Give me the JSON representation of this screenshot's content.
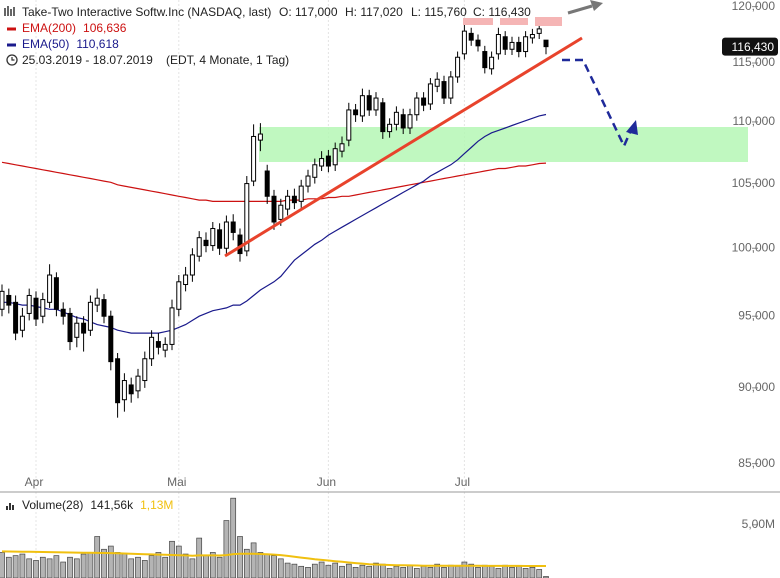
{
  "chart_data": {
    "type": "candlestick",
    "title": "Take-Two Interactive Softw.Inc (NASDAQ, last)",
    "quote": [
      "O: 117,000",
      "H: 117,020",
      "L: 115,760",
      "C: 116,430"
    ],
    "range_label": "25.03.2019 - 18.07.2019",
    "range_note": "(EDT, 4 Monate, 1 Tag)",
    "last_label": "116,430",
    "log": true,
    "grid": true,
    "up_color": "#ffffff",
    "down_color": "#000000",
    "categories": [
      null,
      null,
      null,
      null,
      null,
      "Apr",
      null,
      null,
      null,
      null,
      null,
      null,
      null,
      null,
      null,
      null,
      null,
      null,
      null,
      null,
      null,
      null,
      null,
      null,
      null,
      null,
      "Mai",
      null,
      null,
      null,
      null,
      null,
      null,
      null,
      null,
      null,
      null,
      null,
      null,
      null,
      null,
      null,
      null,
      null,
      null,
      null,
      null,
      null,
      "Jun",
      null,
      null,
      null,
      null,
      null,
      null,
      null,
      null,
      null,
      null,
      null,
      null,
      null,
      null,
      null,
      null,
      null,
      null,
      null,
      "Jul",
      null,
      null,
      null,
      null,
      null,
      null,
      null,
      null,
      null,
      null,
      null,
      null
    ],
    "ohlc": [
      [
        95500,
        97300,
        95000,
        96800
      ],
      [
        96500,
        97000,
        95200,
        95800
      ],
      [
        96000,
        96500,
        93300,
        93800
      ],
      [
        94000,
        95600,
        93500,
        95000
      ],
      [
        95200,
        97000,
        94700,
        96500
      ],
      [
        96300,
        96800,
        94300,
        94800
      ],
      [
        95000,
        96700,
        94500,
        96200
      ],
      [
        96000,
        98800,
        95600,
        98000
      ],
      [
        97800,
        98200,
        95000,
        95500
      ],
      [
        95500,
        96000,
        94400,
        95000
      ],
      [
        95200,
        95600,
        92600,
        93200
      ],
      [
        93500,
        95000,
        92800,
        94500
      ],
      [
        94500,
        95000,
        92500,
        93800
      ],
      [
        94000,
        96500,
        93600,
        96000
      ],
      [
        95800,
        97000,
        95300,
        96300
      ],
      [
        96200,
        96600,
        94500,
        95000
      ],
      [
        95000,
        95400,
        91200,
        91800
      ],
      [
        92000,
        92400,
        88000,
        89000
      ],
      [
        89200,
        91000,
        88400,
        90500
      ],
      [
        90200,
        90700,
        89000,
        89600
      ],
      [
        89800,
        91300,
        89300,
        90800
      ],
      [
        90500,
        92500,
        90000,
        92000
      ],
      [
        92000,
        94000,
        91500,
        93500
      ],
      [
        93200,
        93800,
        92300,
        92800
      ],
      [
        92600,
        93500,
        92100,
        93000
      ],
      [
        93000,
        96200,
        92600,
        95600
      ],
      [
        95500,
        98000,
        95000,
        97500
      ],
      [
        97300,
        98600,
        96800,
        98000
      ],
      [
        98000,
        100000,
        97500,
        99500
      ],
      [
        99400,
        101300,
        99000,
        100800
      ],
      [
        100600,
        101200,
        99700,
        100200
      ],
      [
        100200,
        102000,
        99800,
        101500
      ],
      [
        101400,
        101900,
        99500,
        100000
      ],
      [
        100000,
        102500,
        99500,
        102000
      ],
      [
        102000,
        102600,
        100600,
        101200
      ],
      [
        101000,
        101500,
        99000,
        99600
      ],
      [
        99800,
        105600,
        99400,
        105000
      ],
      [
        105200,
        109800,
        104800,
        108800
      ],
      [
        108500,
        109900,
        107600,
        109000
      ],
      [
        106000,
        106500,
        103400,
        104000
      ],
      [
        104000,
        104500,
        101400,
        102000
      ],
      [
        102200,
        103800,
        101700,
        103300
      ],
      [
        103000,
        104500,
        102500,
        104000
      ],
      [
        104000,
        104600,
        103000,
        103500
      ],
      [
        103600,
        105300,
        103100,
        104800
      ],
      [
        104800,
        106100,
        104300,
        105600
      ],
      [
        105500,
        107000,
        105000,
        106500
      ],
      [
        106400,
        107600,
        106000,
        107000
      ],
      [
        107200,
        107700,
        105900,
        106400
      ],
      [
        106500,
        108300,
        106000,
        107800
      ],
      [
        107600,
        108800,
        107100,
        108200
      ],
      [
        108500,
        111600,
        108000,
        111000
      ],
      [
        111000,
        111500,
        110000,
        110600
      ],
      [
        110500,
        112800,
        110000,
        112200
      ],
      [
        112200,
        112700,
        110500,
        111000
      ],
      [
        111000,
        112500,
        110500,
        112000
      ],
      [
        111600,
        112000,
        108600,
        109200
      ],
      [
        109200,
        110300,
        108700,
        109800
      ],
      [
        109800,
        111300,
        109300,
        110800
      ],
      [
        110600,
        111100,
        109000,
        109500
      ],
      [
        109500,
        111100,
        109000,
        110600
      ],
      [
        110600,
        112500,
        110100,
        112000
      ],
      [
        112000,
        112500,
        110900,
        111400
      ],
      [
        111500,
        113700,
        111000,
        113200
      ],
      [
        113000,
        114200,
        112500,
        113600
      ],
      [
        113400,
        113900,
        111500,
        112000
      ],
      [
        112000,
        114300,
        111500,
        113800
      ],
      [
        113800,
        116000,
        113300,
        115500
      ],
      [
        115800,
        118400,
        115300,
        117800
      ],
      [
        117600,
        118100,
        116500,
        117000
      ],
      [
        117000,
        117500,
        116000,
        116500
      ],
      [
        116000,
        116500,
        114100,
        114600
      ],
      [
        114500,
        116000,
        114000,
        115500
      ],
      [
        115800,
        118100,
        115300,
        117500
      ],
      [
        117300,
        117800,
        115700,
        116200
      ],
      [
        116200,
        117300,
        115700,
        116800
      ],
      [
        116800,
        117300,
        115500,
        116000
      ],
      [
        116000,
        117800,
        115500,
        117300
      ],
      [
        117200,
        118000,
        116700,
        117500
      ],
      [
        117600,
        118600,
        117100,
        118000
      ],
      [
        117000,
        117020,
        115760,
        116430
      ]
    ],
    "series": [
      {
        "name": "EMA(200)",
        "color": "#cc1111",
        "value_label": "106,636",
        "values": [
          106700,
          106600,
          106500,
          106400,
          106300,
          106200,
          106100,
          106000,
          105900,
          105800,
          105700,
          105600,
          105500,
          105400,
          105300,
          105200,
          105100,
          104900,
          104800,
          104700,
          104600,
          104500,
          104400,
          104300,
          104200,
          104100,
          104000,
          103900,
          103800,
          103700,
          103700,
          103600,
          103600,
          103600,
          103600,
          103600,
          103600,
          103600,
          103600,
          103600,
          103600,
          103600,
          103700,
          103700,
          103700,
          103800,
          103800,
          103800,
          103900,
          103900,
          104000,
          104000,
          104100,
          104200,
          104300,
          104400,
          104500,
          104600,
          104700,
          104800,
          104900,
          105000,
          105100,
          105200,
          105300,
          105400,
          105500,
          105600,
          105700,
          105800,
          105900,
          106000,
          106100,
          106200,
          106200,
          106300,
          106400,
          106400,
          106500,
          106600,
          106636
        ]
      },
      {
        "name": "EMA(50)",
        "color": "#1a1a8c",
        "value_label": "110,618",
        "values": [
          96000,
          96000,
          95900,
          95800,
          95800,
          95700,
          95600,
          95500,
          95500,
          95300,
          95100,
          94900,
          94800,
          94600,
          94400,
          94300,
          94200,
          94000,
          93900,
          93800,
          93800,
          93800,
          93800,
          93800,
          93900,
          94000,
          94200,
          94400,
          94700,
          95000,
          95200,
          95400,
          95500,
          95600,
          95800,
          95800,
          96100,
          96500,
          96900,
          97200,
          97500,
          97900,
          98500,
          99100,
          99500,
          99900,
          100300,
          100600,
          101000,
          101300,
          101600,
          101900,
          102200,
          102500,
          102800,
          103100,
          103400,
          103700,
          104000,
          104300,
          104600,
          104900,
          105200,
          105600,
          105900,
          106200,
          106500,
          106900,
          107400,
          107900,
          108400,
          108800,
          109100,
          109300,
          109500,
          109700,
          109900,
          110100,
          110300,
          110500,
          110618
        ]
      }
    ],
    "ylim": [
      83200,
      120600
    ],
    "yticks": [
      {
        "value": 85000,
        "label": "85,000"
      },
      {
        "value": 90000,
        "label": "90,000"
      },
      {
        "value": 95000,
        "label": "95,000"
      },
      {
        "value": 100000,
        "label": "100,000"
      },
      {
        "value": 105000,
        "label": "105,000"
      },
      {
        "value": 110000,
        "label": "110,000"
      },
      {
        "value": 115000,
        "label": "115,000"
      },
      {
        "value": 120000,
        "label": "120,000"
      }
    ],
    "volume": {
      "name": "Volume(28)",
      "value_label": "141,56k",
      "ma_label": "1,13M",
      "color": "#b4b4b4",
      "ma_color": "#f0c010",
      "ylim": [
        0,
        7800000
      ],
      "yticks": [
        {
          "value": 5000000,
          "label": "5,00M"
        }
      ],
      "values": [
        2400000,
        1950000,
        2100000,
        2250000,
        1800000,
        1650000,
        1950000,
        1800000,
        2100000,
        1500000,
        1950000,
        1800000,
        2250000,
        2400000,
        3900000,
        2700000,
        3000000,
        2400000,
        2250000,
        1800000,
        1950000,
        1650000,
        2100000,
        2400000,
        1950000,
        3450000,
        3000000,
        2250000,
        1800000,
        3750000,
        2100000,
        2400000,
        1950000,
        5400000,
        7500000,
        3900000,
        2700000,
        3300000,
        2400000,
        2250000,
        2100000,
        1800000,
        1400000,
        1300000,
        1100000,
        1000000,
        1300000,
        1500000,
        1200000,
        1400000,
        1100000,
        1300000,
        1000000,
        1200000,
        1100000,
        1400000,
        1300000,
        900000,
        1100000,
        1000000,
        1200000,
        900000,
        1100000,
        1000000,
        1300000,
        1000000,
        1200000,
        1100000,
        1500000,
        1300000,
        1000000,
        1200000,
        1100000,
        900000,
        1200000,
        1000000,
        1100000,
        900000,
        1000000,
        800000,
        141560
      ],
      "ma": [
        2500000,
        2490000,
        2480000,
        2470000,
        2460000,
        2450000,
        2440000,
        2430000,
        2420000,
        2410000,
        2400000,
        2390000,
        2380000,
        2370000,
        2360000,
        2350000,
        2340000,
        2320000,
        2300000,
        2280000,
        2260000,
        2240000,
        2220000,
        2200000,
        2180000,
        2160000,
        2140000,
        2120000,
        2100000,
        2120000,
        2120000,
        2120000,
        2110000,
        2150000,
        2250000,
        2270000,
        2270000,
        2270000,
        2260000,
        2240000,
        2200000,
        2150000,
        2080000,
        2000000,
        1920000,
        1840000,
        1760000,
        1700000,
        1640000,
        1580000,
        1520000,
        1460000,
        1400000,
        1350000,
        1300000,
        1270000,
        1240000,
        1220000,
        1200000,
        1190000,
        1180000,
        1170000,
        1160000,
        1160000,
        1150000,
        1150000,
        1150000,
        1150000,
        1150000,
        1150000,
        1150000,
        1140000,
        1140000,
        1140000,
        1140000,
        1140000,
        1140000,
        1130000,
        1130000,
        1130000,
        1130000
      ]
    }
  }
}
